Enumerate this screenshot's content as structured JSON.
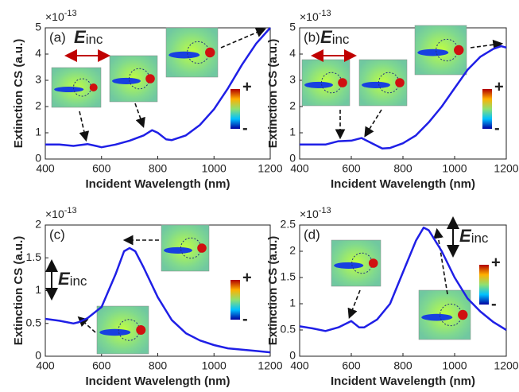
{
  "chart_data": [
    {
      "type": "line",
      "panel": "(a)",
      "multiplier": {
        "base": "×10",
        "exponent": "-13"
      },
      "x_label": "Incident Wavelength (nm)",
      "y_label": "Extinction CS (a.u.)",
      "annotation": {
        "symbol": "E",
        "subscript": "inc"
      },
      "colorbar_labels": [
        "+",
        "-"
      ],
      "x": [
        400,
        450,
        500,
        550,
        580,
        600,
        650,
        700,
        750,
        780,
        800,
        830,
        850,
        900,
        950,
        1000,
        1050,
        1100,
        1150,
        1200
      ],
      "series": [
        {
          "color": "#1f1fe6",
          "values": [
            0.55,
            0.55,
            0.5,
            0.57,
            0.5,
            0.45,
            0.55,
            0.7,
            0.9,
            1.1,
            1.0,
            0.75,
            0.72,
            0.9,
            1.3,
            1.9,
            2.7,
            3.6,
            4.4,
            5.0
          ]
        }
      ],
      "xlim": [
        400,
        1200
      ],
      "xticks": [
        400,
        600,
        800,
        1000,
        1200
      ],
      "ylim": [
        0,
        5
      ],
      "yticks": [
        0,
        1,
        2,
        3,
        4,
        5
      ]
    },
    {
      "type": "line",
      "panel": "(b)",
      "multiplier": {
        "base": "×10",
        "exponent": "-13"
      },
      "x_label": "Incident Wavelength (nm)",
      "y_label": "Extinction CS (a.u.)",
      "annotation": {
        "symbol": "E",
        "subscript": "inc"
      },
      "colorbar_labels": [
        "+",
        "-"
      ],
      "x": [
        400,
        450,
        500,
        550,
        600,
        640,
        680,
        720,
        750,
        800,
        850,
        900,
        950,
        1000,
        1050,
        1100,
        1150,
        1180,
        1200
      ],
      "series": [
        {
          "color": "#1f1fe6",
          "values": [
            0.55,
            0.55,
            0.55,
            0.68,
            0.7,
            0.8,
            0.6,
            0.4,
            0.42,
            0.6,
            0.9,
            1.4,
            2.0,
            2.7,
            3.4,
            3.9,
            4.2,
            4.3,
            4.25
          ]
        }
      ],
      "xlim": [
        400,
        1200
      ],
      "xticks": [
        400,
        600,
        800,
        1000,
        1200
      ],
      "ylim": [
        0,
        5
      ],
      "yticks": [
        0,
        1,
        2,
        3,
        4,
        5
      ]
    },
    {
      "type": "line",
      "panel": "(c)",
      "multiplier": {
        "base": "×10",
        "exponent": "-13"
      },
      "x_label": "Incident Wavelength (nm)",
      "y_label": "Extinction CS (a.u.)",
      "annotation": {
        "symbol": "E",
        "subscript": "inc"
      },
      "colorbar_labels": [
        "+",
        "-"
      ],
      "x": [
        400,
        450,
        500,
        520,
        550,
        600,
        650,
        680,
        700,
        720,
        750,
        800,
        850,
        900,
        950,
        1000,
        1050,
        1100,
        1150,
        1200
      ],
      "series": [
        {
          "color": "#1f1fe6",
          "values": [
            0.57,
            0.54,
            0.5,
            0.52,
            0.58,
            0.75,
            1.25,
            1.6,
            1.65,
            1.6,
            1.35,
            0.9,
            0.55,
            0.35,
            0.24,
            0.17,
            0.12,
            0.1,
            0.08,
            0.06
          ]
        }
      ],
      "xlim": [
        400,
        1200
      ],
      "xticks": [
        400,
        600,
        800,
        1000,
        1200
      ],
      "ylim": [
        0,
        2
      ],
      "yticks": [
        0,
        0.5,
        1,
        1.5,
        2
      ]
    },
    {
      "type": "line",
      "panel": "(d)",
      "multiplier": {
        "base": "×10",
        "exponent": "-13"
      },
      "x_label": "Incident Wavelength (nm)",
      "y_label": "Extinction CS (a.u.)",
      "annotation": {
        "symbol": "E",
        "subscript": "inc"
      },
      "colorbar_labels": [
        "+",
        "-"
      ],
      "x": [
        400,
        450,
        500,
        550,
        600,
        630,
        650,
        700,
        750,
        800,
        850,
        880,
        900,
        950,
        1000,
        1050,
        1100,
        1150,
        1200
      ],
      "series": [
        {
          "color": "#1f1fe6",
          "values": [
            0.57,
            0.53,
            0.48,
            0.55,
            0.67,
            0.55,
            0.55,
            0.7,
            1.0,
            1.6,
            2.2,
            2.45,
            2.4,
            2.0,
            1.5,
            1.1,
            0.85,
            0.65,
            0.5
          ]
        }
      ],
      "xlim": [
        400,
        1200
      ],
      "xticks": [
        400,
        600,
        800,
        1000,
        1200
      ],
      "ylim": [
        0,
        2.5
      ],
      "yticks": [
        0,
        0.5,
        1,
        1.5,
        2,
        2.5
      ]
    }
  ]
}
